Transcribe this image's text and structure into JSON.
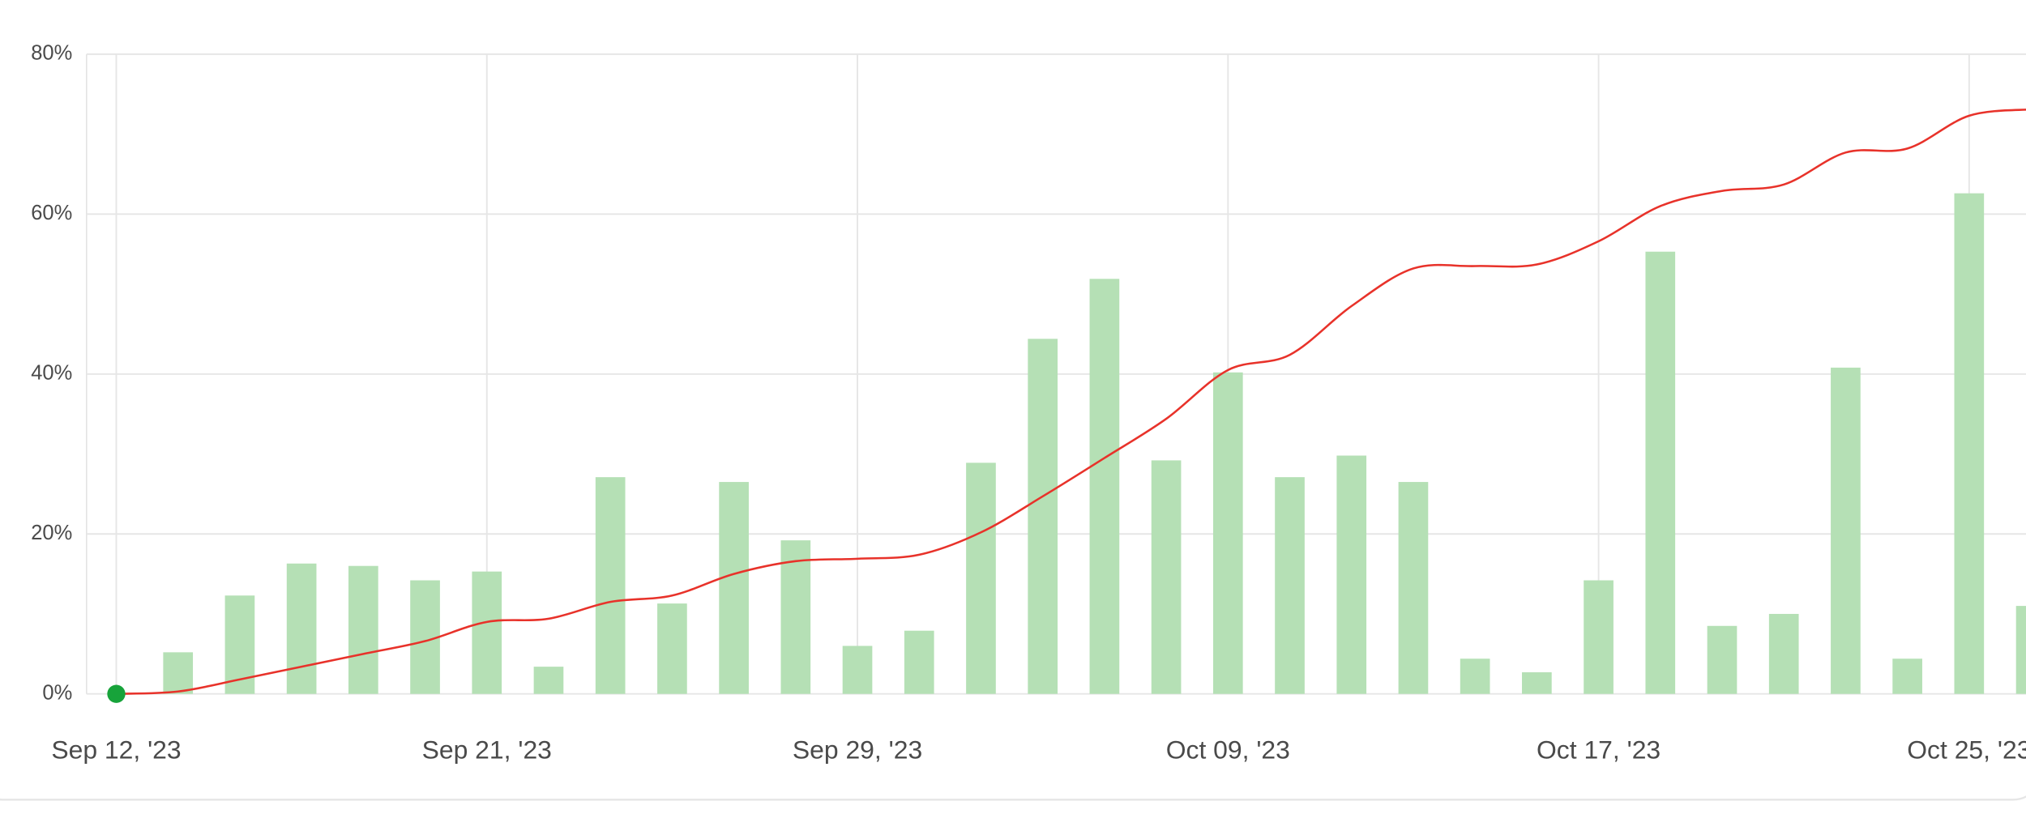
{
  "chart_data": {
    "type": "bar",
    "categories": [
      "Sep 12, '23",
      null,
      null,
      null,
      null,
      null,
      "Sep 21, '23",
      null,
      null,
      null,
      null,
      null,
      "Sep 29, '23",
      null,
      null,
      null,
      null,
      null,
      "Oct 09, '23",
      null,
      null,
      null,
      null,
      null,
      "Oct 17, '23",
      null,
      null,
      null,
      null,
      null,
      "Oct 25, '23",
      null
    ],
    "series": [
      {
        "type": "bar",
        "color": "#b5e0b5",
        "values": [
          0,
          5.2,
          12.3,
          16.3,
          16.0,
          14.2,
          15.3,
          3.4,
          27.1,
          11.3,
          26.5,
          19.2,
          6.0,
          7.9,
          28.9,
          44.4,
          51.9,
          29.2,
          40.2,
          27.1,
          29.8,
          26.5,
          4.4,
          2.7,
          14.2,
          55.3,
          8.5,
          10.0,
          40.8,
          4.4,
          62.6,
          11.0
        ]
      },
      {
        "type": "line",
        "color": "#e8322a",
        "marker_color": "#17a33a",
        "values": [
          0,
          0.3,
          1.8,
          3.4,
          5.0,
          6.6,
          9.0,
          9.4,
          11.5,
          12.3,
          15.0,
          16.6,
          16.9,
          17.4,
          20.2,
          24.7,
          29.5,
          34.4,
          40.5,
          42.4,
          48.5,
          53.2,
          53.5,
          53.7,
          56.6,
          61.0,
          62.9,
          63.7,
          67.7,
          68.2,
          72.3,
          73.1
        ]
      }
    ],
    "ylim": [
      0,
      80
    ],
    "yticks": [
      {
        "value": 0,
        "label": "0%"
      },
      {
        "value": 20,
        "label": "20%"
      },
      {
        "value": 40,
        "label": "40%"
      },
      {
        "value": 60,
        "label": "60%"
      },
      {
        "value": 80,
        "label": "80%"
      }
    ],
    "grid": true
  }
}
